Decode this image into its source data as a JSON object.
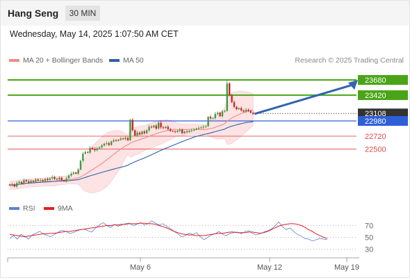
{
  "header": {
    "instrument": "Hang Seng",
    "timeframe": "30 MIN"
  },
  "datetime": "Wednesday, May 14, 2025 1:07:50 AM CET",
  "legend": {
    "ma20_bb": {
      "label": "MA 20 + Bollinger Bands",
      "color": "#f08a8a"
    },
    "ma50": {
      "label": "MA 50",
      "color": "#2d5fa6"
    }
  },
  "credit": "Research © 2025 Trading Central",
  "rsi_legend": {
    "rsi": {
      "label": "RSI",
      "color": "#5b7fd6"
    },
    "ma9": {
      "label": "9MA",
      "color": "#e02020"
    }
  },
  "colors": {
    "resistance": "#4aa516",
    "pivot": "#2f5fd8",
    "support": "#e04a4a",
    "current": "#333333",
    "bull": "#3f9a3f",
    "bear": "#c62828",
    "band_fill": "#fde3e3",
    "arrow": "#2f64b0"
  },
  "chart_data": [
    {
      "type": "candlestick",
      "instrument": "Hang Seng",
      "timeframe": "30 MIN",
      "x_ticks": [
        "May 6",
        "May 12",
        "May 19"
      ],
      "ylim": [
        21770,
        23870
      ],
      "levels": [
        {
          "label": "23680",
          "value": 23680,
          "kind": "resistance"
        },
        {
          "label": "23420",
          "value": 23420,
          "kind": "resistance"
        },
        {
          "label": "23108",
          "value": 23108,
          "kind": "current"
        },
        {
          "label": "22980",
          "value": 22980,
          "kind": "pivot"
        },
        {
          "label": "22720",
          "value": 22720,
          "kind": "support"
        },
        {
          "label": "22500",
          "value": 22500,
          "kind": "support"
        }
      ],
      "close": [
        21880,
        21900,
        21860,
        21920,
        21940,
        21910,
        21970,
        21950,
        21930,
        21960,
        21940,
        21980,
        21960,
        21970,
        21950,
        21990,
        21970,
        22000,
        22020,
        21990,
        21980,
        22010,
        21970,
        21950,
        22000,
        22050,
        22080,
        22100,
        22080,
        22150,
        22300,
        22420,
        22450,
        22440,
        22520,
        22500,
        22480,
        22510,
        22530,
        22560,
        22590,
        22600,
        22570,
        22630,
        22650,
        22640,
        22660,
        22680,
        22670,
        22690,
        22650,
        23000,
        22820,
        22730,
        22780,
        22750,
        22800,
        22770,
        22820,
        22880,
        22870,
        22900,
        22850,
        22950,
        22870,
        22860,
        22880,
        22840,
        22810,
        22800,
        22790,
        22810,
        22830,
        22770,
        22800,
        22790,
        22810,
        22820,
        22830,
        22850,
        22860,
        22870,
        22880,
        22890,
        23050,
        23020,
        23030,
        23100,
        23120,
        23060,
        23140,
        23150,
        23620,
        23420,
        23300,
        23220,
        23180,
        23200,
        23160,
        23140,
        23170,
        23150,
        23120,
        23100
      ]
    },
    {
      "type": "line",
      "indicator": "RSI",
      "y_ticks": [
        70,
        50,
        30
      ],
      "series": [
        {
          "name": "RSI",
          "values": [
            48,
            53,
            47,
            55,
            52,
            47,
            54,
            57,
            60,
            56,
            53,
            51,
            55,
            59,
            62,
            60,
            57,
            58,
            61,
            63,
            64,
            61,
            59,
            66,
            71,
            75,
            70,
            67,
            72,
            69,
            71,
            73,
            74,
            70,
            72,
            75,
            71,
            73,
            78,
            74,
            71,
            73,
            69,
            65,
            60,
            56,
            51,
            53,
            57,
            55,
            58,
            51,
            46,
            50,
            54,
            56,
            60,
            55,
            53,
            57,
            58,
            59,
            56,
            60,
            61,
            57,
            54,
            56,
            59,
            61,
            64,
            69,
            76,
            68,
            63,
            66,
            60,
            55,
            52,
            48,
            47,
            44,
            46,
            48,
            47,
            46
          ]
        },
        {
          "name": "9MA",
          "values": [
            55,
            54,
            53,
            52,
            51,
            52,
            53,
            54,
            55,
            56,
            56,
            57,
            57,
            58,
            59,
            60,
            60,
            61,
            62,
            63,
            64,
            65,
            66,
            67,
            68,
            69,
            70,
            70,
            71,
            71,
            72,
            72,
            73,
            73,
            73,
            74,
            74,
            73,
            73,
            72,
            70,
            68,
            66,
            63,
            60,
            58,
            56,
            55,
            54,
            54,
            53,
            53,
            53,
            54,
            55,
            56,
            57,
            57,
            58,
            59,
            59,
            58,
            58,
            58,
            59,
            59,
            58,
            57,
            58,
            60,
            63,
            66,
            69,
            71,
            72,
            73,
            73,
            72,
            70,
            67,
            63,
            60,
            56,
            53,
            50,
            48
          ]
        }
      ]
    }
  ]
}
